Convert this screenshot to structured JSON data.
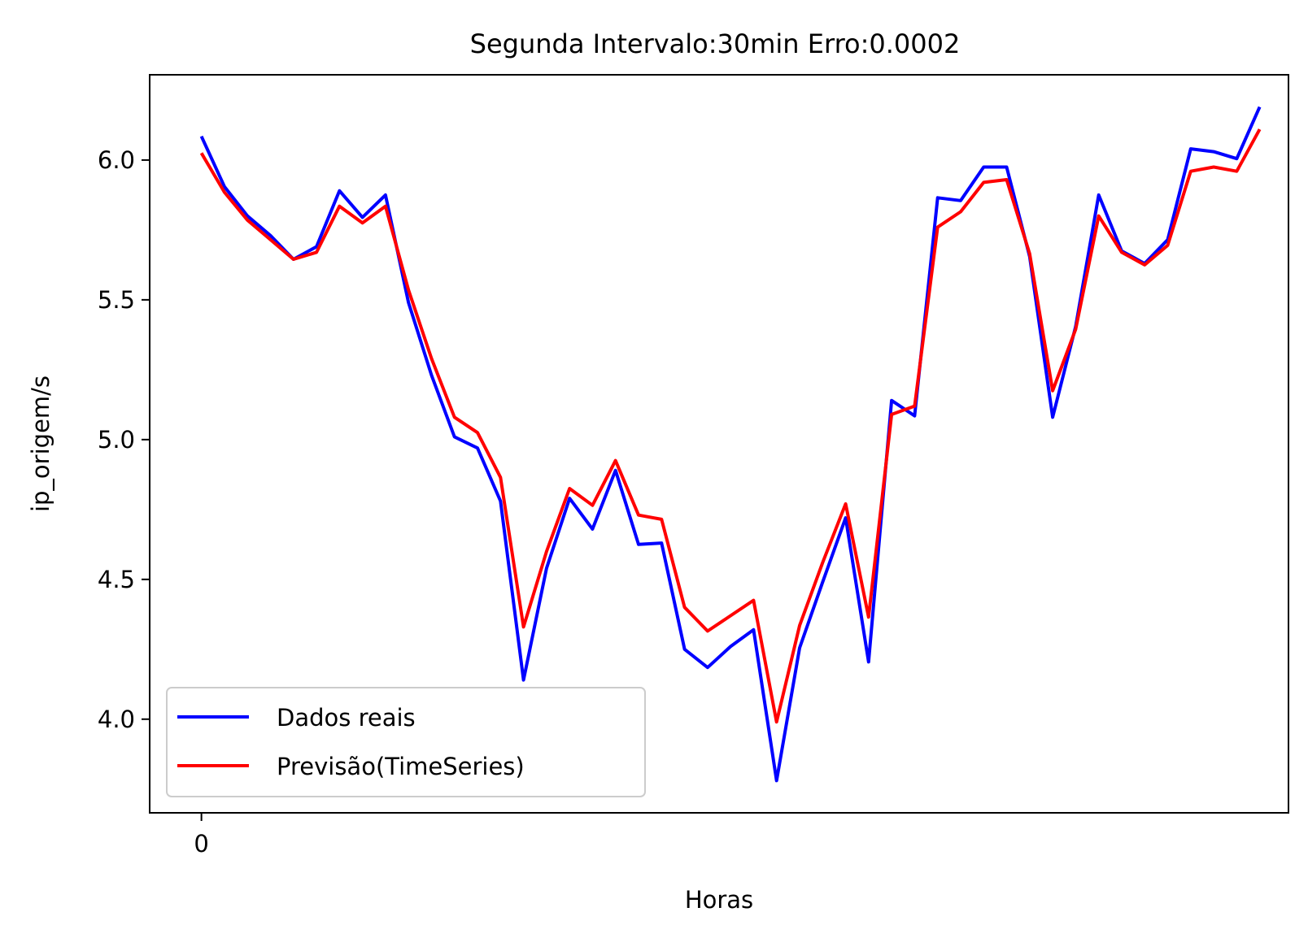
{
  "chart_data": {
    "type": "line",
    "title": "Segunda Intervalo:30min Erro:0.0002",
    "xlabel": "Horas",
    "ylabel": "ip_origem/s",
    "xlim": [
      -2.25,
      47.25
    ],
    "ylim": [
      3.665,
      6.305
    ],
    "xticks": [
      0
    ],
    "xtick_labels": [
      "0"
    ],
    "yticks": [
      4.0,
      4.5,
      5.0,
      5.5,
      6.0
    ],
    "ytick_labels": [
      "4.0",
      "4.5",
      "5.0",
      "5.5",
      "6.0"
    ],
    "grid": false,
    "legend_position": "lower-left",
    "series": [
      {
        "name": "Dados reais",
        "color": "#0000ff",
        "values": [
          6.085,
          5.905,
          5.8,
          5.73,
          5.645,
          5.69,
          5.89,
          5.795,
          5.875,
          5.49,
          5.23,
          5.01,
          4.97,
          4.78,
          4.14,
          4.54,
          4.79,
          4.68,
          4.89,
          4.625,
          4.63,
          4.25,
          4.185,
          4.26,
          4.32,
          3.78,
          4.255,
          4.49,
          4.72,
          4.205,
          5.14,
          5.085,
          5.865,
          5.855,
          5.975,
          5.975,
          5.655,
          5.08,
          5.405,
          5.875,
          5.675,
          5.63,
          5.715,
          6.04,
          6.03,
          6.005,
          6.19
        ]
      },
      {
        "name": "Previsão(TimeSeries)",
        "color": "#ff0000",
        "values": [
          6.025,
          5.885,
          5.785,
          5.715,
          5.645,
          5.67,
          5.835,
          5.775,
          5.835,
          5.535,
          5.29,
          5.08,
          5.025,
          4.865,
          4.33,
          4.6,
          4.825,
          4.765,
          4.925,
          4.73,
          4.715,
          4.4,
          4.315,
          4.37,
          4.425,
          3.99,
          4.335,
          4.56,
          4.77,
          4.365,
          5.09,
          5.12,
          5.76,
          5.815,
          5.92,
          5.93,
          5.665,
          5.175,
          5.395,
          5.8,
          5.67,
          5.625,
          5.695,
          5.96,
          5.975,
          5.96,
          6.11
        ]
      }
    ]
  }
}
